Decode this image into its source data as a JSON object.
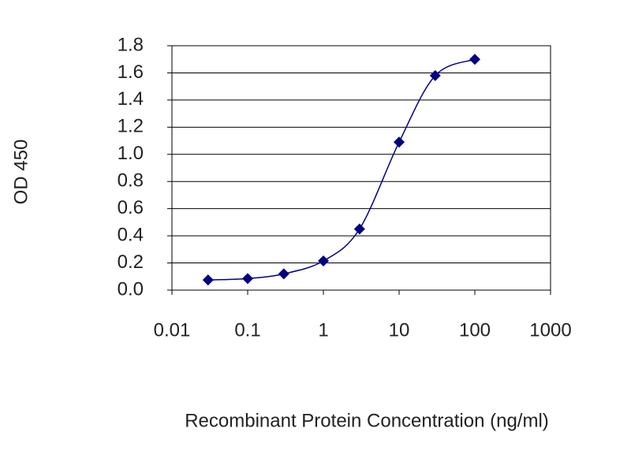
{
  "chart_data": {
    "type": "line",
    "xlabel": "Recombinant Protein Concentration (ng/ml)",
    "ylabel": "OD 450",
    "x": [
      0.03,
      0.1,
      0.3,
      1,
      3,
      10,
      30,
      100
    ],
    "series": [
      {
        "color": "#000080",
        "values": [
          0.075,
          0.085,
          0.12,
          0.215,
          0.45,
          1.09,
          1.58,
          1.7
        ]
      }
    ],
    "xscale": "log",
    "xlim": [
      0.01,
      1000
    ],
    "xticks": [
      0.01,
      0.1,
      1,
      10,
      100,
      1000
    ],
    "ylim": [
      0,
      1.8
    ],
    "yticks": [
      {
        "value": 0,
        "label": "0.0"
      },
      0.2,
      0.4,
      0.6,
      0.8,
      {
        "value": 1,
        "label": "1.0"
      },
      1.2,
      1.4,
      1.6,
      1.8
    ],
    "grid": true
  }
}
